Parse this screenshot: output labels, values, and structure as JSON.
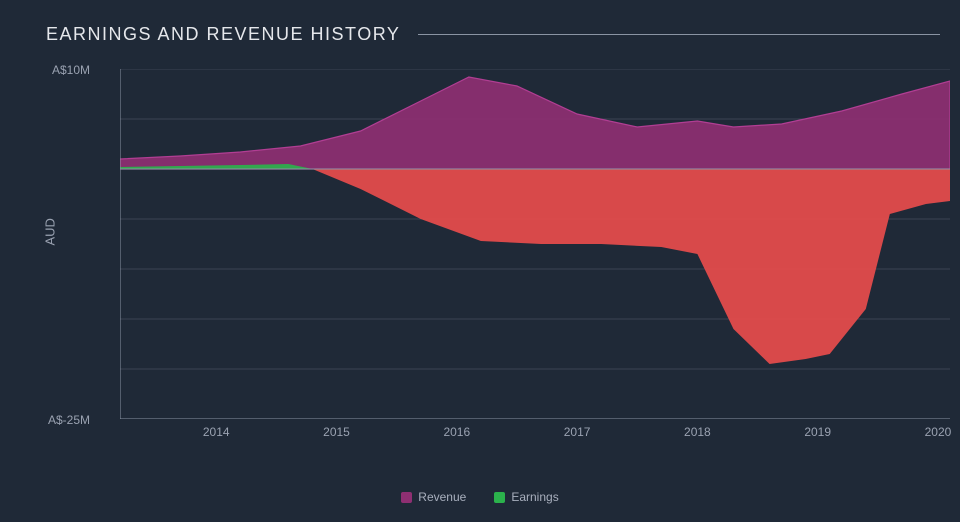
{
  "title": "EARNINGS AND REVENUE HISTORY",
  "chart": {
    "type": "area",
    "background_color": "#1f2937",
    "grid_color": "#3b4453",
    "axis_line_color": "#8a94a3",
    "text_color": "#9aa2b1",
    "title_color": "#e5e7eb",
    "title_fontsize": 18,
    "label_fontsize": 12,
    "y_axis": {
      "label": "AUD",
      "top_tick": "A$10M",
      "bottom_tick": "A$-25M",
      "ymin": -25,
      "ymax": 10,
      "grid_lines": [
        10,
        5,
        0,
        -5,
        -10,
        -15,
        -20,
        -25
      ]
    },
    "x_axis": {
      "xmin": 2013.2,
      "xmax": 2020.1,
      "ticks": [
        2014,
        2015,
        2016,
        2017,
        2018,
        2019,
        2020
      ],
      "tick_labels": [
        "2014",
        "2015",
        "2016",
        "2017",
        "2018",
        "2019",
        "2020"
      ]
    },
    "series": [
      {
        "name": "Revenue",
        "legend_label": "Revenue",
        "fill_color": "#8e2f72",
        "fill_opacity": 0.92,
        "stroke_color": "#b13e93",
        "stroke_width": 1.2,
        "baseline": 0,
        "points": [
          {
            "x": 2013.2,
            "y": 1.0
          },
          {
            "x": 2013.7,
            "y": 1.3
          },
          {
            "x": 2014.2,
            "y": 1.7
          },
          {
            "x": 2014.7,
            "y": 2.3
          },
          {
            "x": 2015.2,
            "y": 3.8
          },
          {
            "x": 2015.7,
            "y": 6.8
          },
          {
            "x": 2016.1,
            "y": 9.2
          },
          {
            "x": 2016.5,
            "y": 8.3
          },
          {
            "x": 2017.0,
            "y": 5.5
          },
          {
            "x": 2017.5,
            "y": 4.2
          },
          {
            "x": 2018.0,
            "y": 4.8
          },
          {
            "x": 2018.3,
            "y": 4.2
          },
          {
            "x": 2018.7,
            "y": 4.5
          },
          {
            "x": 2019.2,
            "y": 5.8
          },
          {
            "x": 2019.7,
            "y": 7.5
          },
          {
            "x": 2020.1,
            "y": 8.8
          }
        ]
      },
      {
        "name": "Earnings",
        "legend_label": "Earnings",
        "fill_color_positive": "#2bb24c",
        "fill_color_negative": "#e84c4c",
        "fill_opacity": 0.92,
        "stroke_width": 0,
        "baseline": 0,
        "points": [
          {
            "x": 2013.2,
            "y": 0.2
          },
          {
            "x": 2013.7,
            "y": 0.3
          },
          {
            "x": 2014.2,
            "y": 0.4
          },
          {
            "x": 2014.6,
            "y": 0.5
          },
          {
            "x": 2014.8,
            "y": 0.0
          },
          {
            "x": 2015.2,
            "y": -2.0
          },
          {
            "x": 2015.7,
            "y": -5.0
          },
          {
            "x": 2016.2,
            "y": -7.2
          },
          {
            "x": 2016.7,
            "y": -7.5
          },
          {
            "x": 2017.2,
            "y": -7.5
          },
          {
            "x": 2017.7,
            "y": -7.8
          },
          {
            "x": 2018.0,
            "y": -8.5
          },
          {
            "x": 2018.3,
            "y": -16.0
          },
          {
            "x": 2018.6,
            "y": -19.5
          },
          {
            "x": 2018.9,
            "y": -19.0
          },
          {
            "x": 2019.1,
            "y": -18.5
          },
          {
            "x": 2019.4,
            "y": -14.0
          },
          {
            "x": 2019.6,
            "y": -4.5
          },
          {
            "x": 2019.9,
            "y": -3.5
          },
          {
            "x": 2020.1,
            "y": -3.2
          }
        ]
      }
    ]
  }
}
